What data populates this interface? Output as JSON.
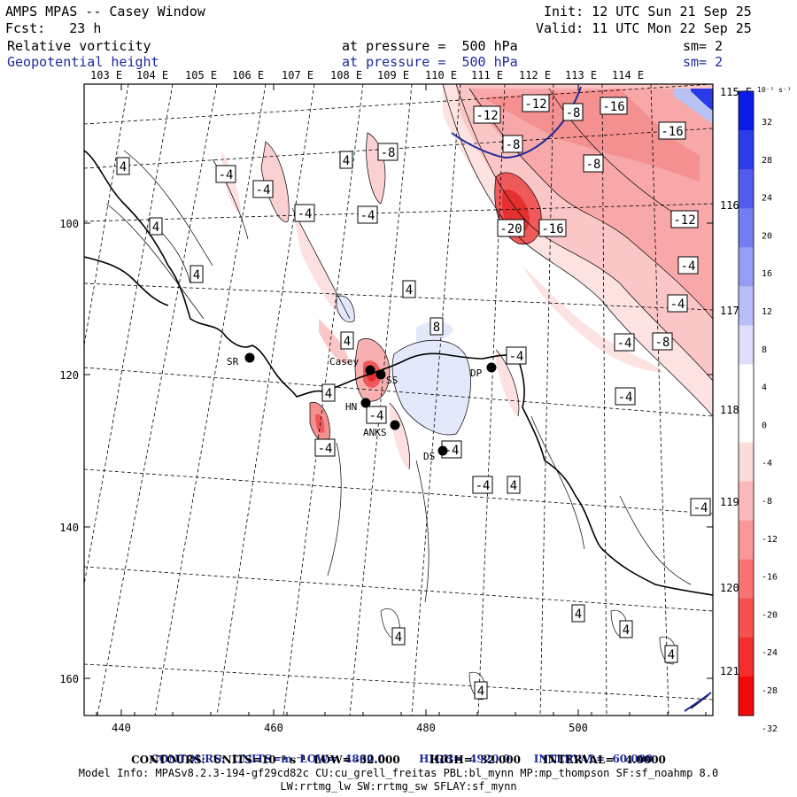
{
  "header": {
    "title": "AMPS MPAS -- Casey Window",
    "fcst": "Fcst:   23 h",
    "init": "Init: 12 UTC Sun 21 Sep 25",
    "valid": "Valid: 11 UTC Mon 22 Sep 25",
    "field1_name": "Relative vorticity",
    "field1_pressure": "at pressure =  500 hPa",
    "field1_sm": "sm= 2",
    "field2_name": "Geopotential height",
    "field2_pressure": "at pressure =  500 hPa",
    "field2_sm": "sm= 2"
  },
  "colors": {
    "positive_max": "#0a1be6",
    "negative_max": "#f20a0a",
    "geopotential_contour": "#1c2a9c",
    "coastline": "#000000"
  },
  "top_lon_labels": [
    "103 E",
    "104 E",
    "105 E",
    "106 E",
    "107 E",
    "108 E",
    "109 E",
    "110 E",
    "111 E",
    "112 E",
    "113 E",
    "114 E"
  ],
  "right_lon_labels": [
    "115 E",
    "116 E",
    "117 E",
    "118 E",
    "119 E",
    "120 E",
    "121 E"
  ],
  "x_ticks": [
    "440",
    "460",
    "480",
    "500"
  ],
  "y_ticks": [
    "100",
    "120",
    "140",
    "160"
  ],
  "colorbar": {
    "units": "10⁻⁵ s⁻¹",
    "labels": [
      "32",
      "28",
      "24",
      "20",
      "16",
      "12",
      "8",
      "4",
      "0",
      "-4",
      "-8",
      "-12",
      "-16",
      "-20",
      "-24",
      "-28",
      "-32"
    ]
  },
  "contour_labels": [
    {
      "text": "-12"
    },
    {
      "text": "-12"
    },
    {
      "text": "-8"
    },
    {
      "text": "-16"
    },
    {
      "text": "-16"
    },
    {
      "text": "-8"
    },
    {
      "text": "-8"
    },
    {
      "text": "-8"
    },
    {
      "text": "4"
    },
    {
      "text": "4"
    },
    {
      "text": "-4"
    },
    {
      "text": "-4"
    },
    {
      "text": "-4"
    },
    {
      "text": "-4"
    },
    {
      "text": "-20"
    },
    {
      "text": "-16"
    },
    {
      "text": "-12"
    },
    {
      "text": "4"
    },
    {
      "text": "-4"
    },
    {
      "text": "4"
    },
    {
      "text": "4"
    },
    {
      "text": "-4"
    },
    {
      "text": "8"
    },
    {
      "text": "-4"
    },
    {
      "text": "-8"
    },
    {
      "text": "-4"
    },
    {
      "text": "-4"
    },
    {
      "text": "4"
    },
    {
      "text": "-4"
    },
    {
      "text": "-4"
    },
    {
      "text": "-4"
    },
    {
      "text": "-4"
    },
    {
      "text": "4"
    },
    {
      "text": "-4"
    },
    {
      "text": "4"
    },
    {
      "text": "4"
    },
    {
      "text": "4"
    },
    {
      "text": "4"
    },
    {
      "text": "4"
    },
    {
      "text": "4"
    }
  ],
  "stations": [
    {
      "name": "SR"
    },
    {
      "name": "Casey"
    },
    {
      "name": "SS"
    },
    {
      "name": "HN"
    },
    {
      "name": "ANKS"
    },
    {
      "name": "DS"
    },
    {
      "name": "DP"
    }
  ],
  "footer": {
    "line1_a": "CONTOURS:  UNITS=m  LOW=  4860.0",
    "line1_b": "HIGH=  4920.0",
    "line1_c": "INTERVAL=  60.000",
    "line2": "CONTOURS:  UNITS=10⁻⁵ s⁻¹  LOW= -32.000        HIGH=  32.000      INTERVAL=   4.0000",
    "line3": "Model Info: MPASv8.2.3-194-gf29cd82c CU:cu_grell_freitas PBL:bl_mynn MP:mp_thompson SF:sf_noahmp 8.0",
    "line4": "LW:rrtmg_lw SW:rrtmg_sw SFLAY:sf_mynn"
  }
}
